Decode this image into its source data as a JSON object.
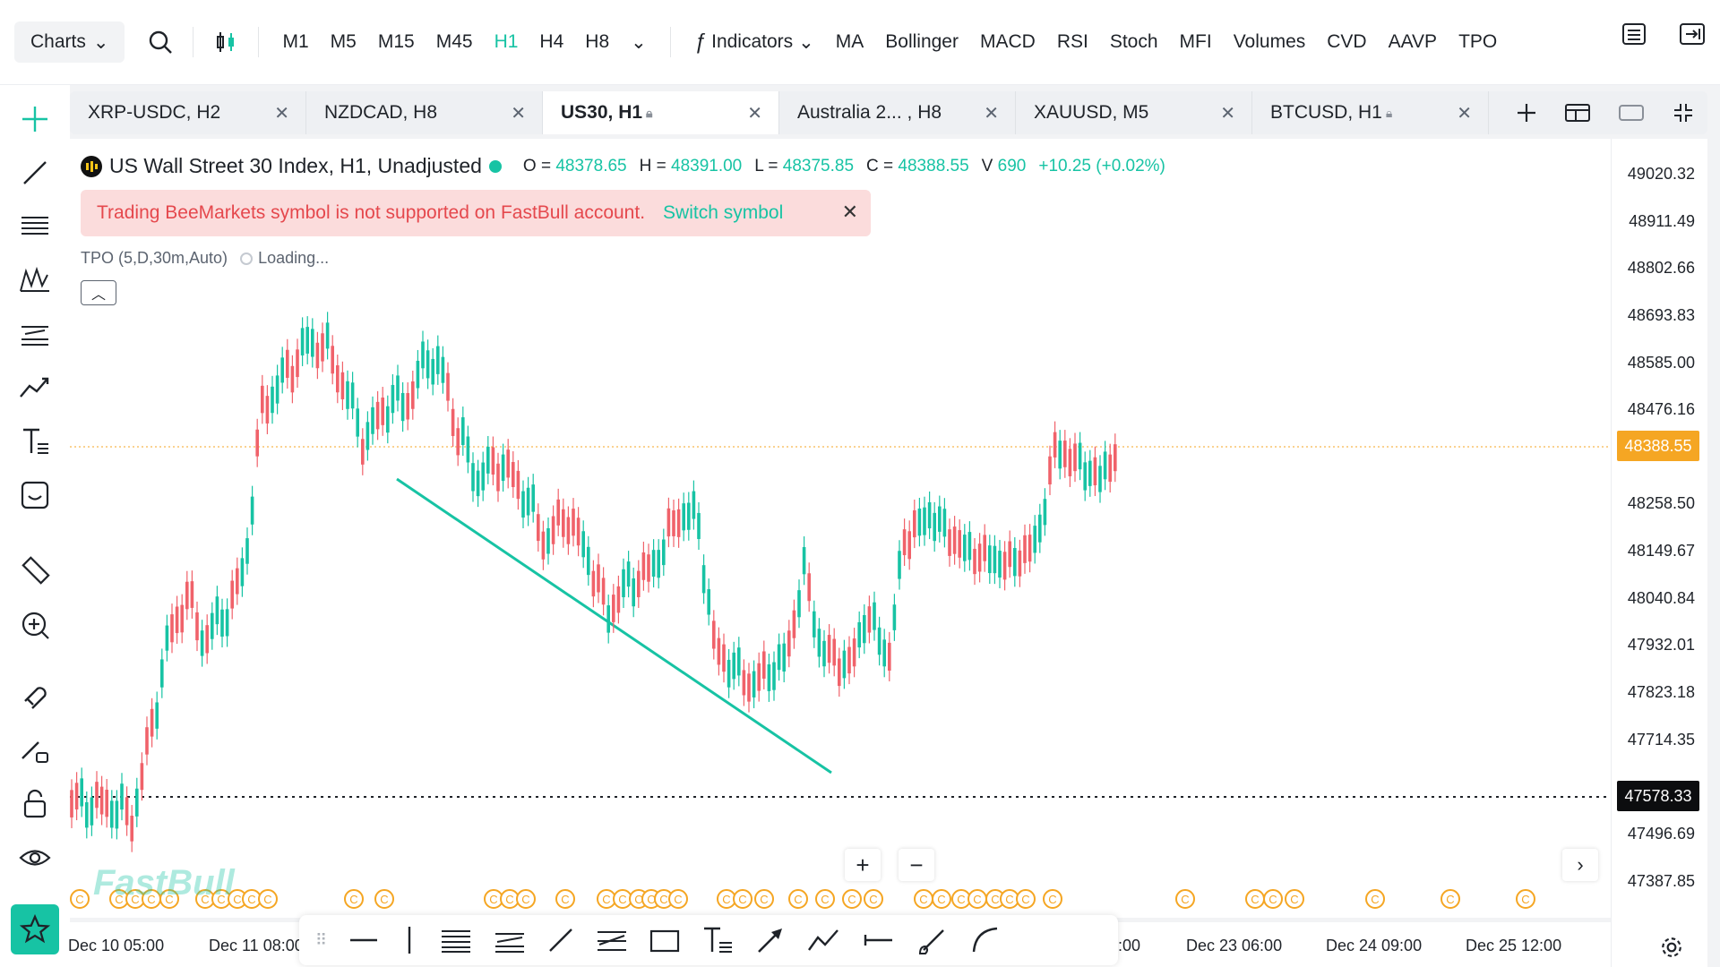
{
  "toolbar": {
    "charts_label": "Charts",
    "timeframes": [
      "M1",
      "M5",
      "M15",
      "M45",
      "H1",
      "H4",
      "H8"
    ],
    "active_timeframe": "H1",
    "indicators_label": "Indicators",
    "indicators": [
      "MA",
      "Bollinger",
      "MACD",
      "RSI",
      "Stoch",
      "MFI",
      "Volumes",
      "CVD",
      "AAVP",
      "TPO"
    ]
  },
  "tabs": [
    {
      "label": "XRP-USDC, H2",
      "locked": false
    },
    {
      "label": "NZDCAD, H8",
      "locked": false
    },
    {
      "label": "US30, H1",
      "locked": true,
      "active": true
    },
    {
      "label": "Australia 2... , H8",
      "locked": false
    },
    {
      "label": "XAUUSD, M5",
      "locked": false
    },
    {
      "label": "BTCUSD, H1",
      "locked": true
    }
  ],
  "legend": {
    "title": "US Wall Street 30 Index, H1, Unadjusted",
    "o_label": "O =",
    "o": "48378.65",
    "h_label": "H =",
    "h": "48391.00",
    "l_label": "L =",
    "l": "48375.85",
    "c_label": "C =",
    "c": "48388.55",
    "v_label": "V",
    "v": "690",
    "change": "+10.25 (+0.02%)"
  },
  "warning": {
    "text": "Trading BeeMarkets symbol is not supported on FastBull account.",
    "action": "Switch symbol"
  },
  "tpo": {
    "label": "TPO (5,D,30m,Auto)",
    "status": "Loading..."
  },
  "price_axis": {
    "labels": [
      "49020.32",
      "48911.49",
      "48802.66",
      "48693.83",
      "48585.00",
      "48476.16",
      "48258.50",
      "48149.67",
      "48040.84",
      "47932.01",
      "47823.18",
      "47714.35",
      "47496.69",
      "47387.85"
    ],
    "current_price": "48388.55",
    "line_price": "47578.33"
  },
  "time_axis": {
    "labels": [
      "Dec 10 05:00",
      "Dec 11 08:00",
      ":00",
      "Dec 23 06:00",
      "Dec 24 09:00",
      "Dec 25 12:00"
    ]
  },
  "watermark": "FastBull",
  "colors": {
    "accent": "#17c3a4",
    "bear": "#f0626a",
    "bull": "#17c3a4",
    "price_tag": "#f5a623"
  }
}
